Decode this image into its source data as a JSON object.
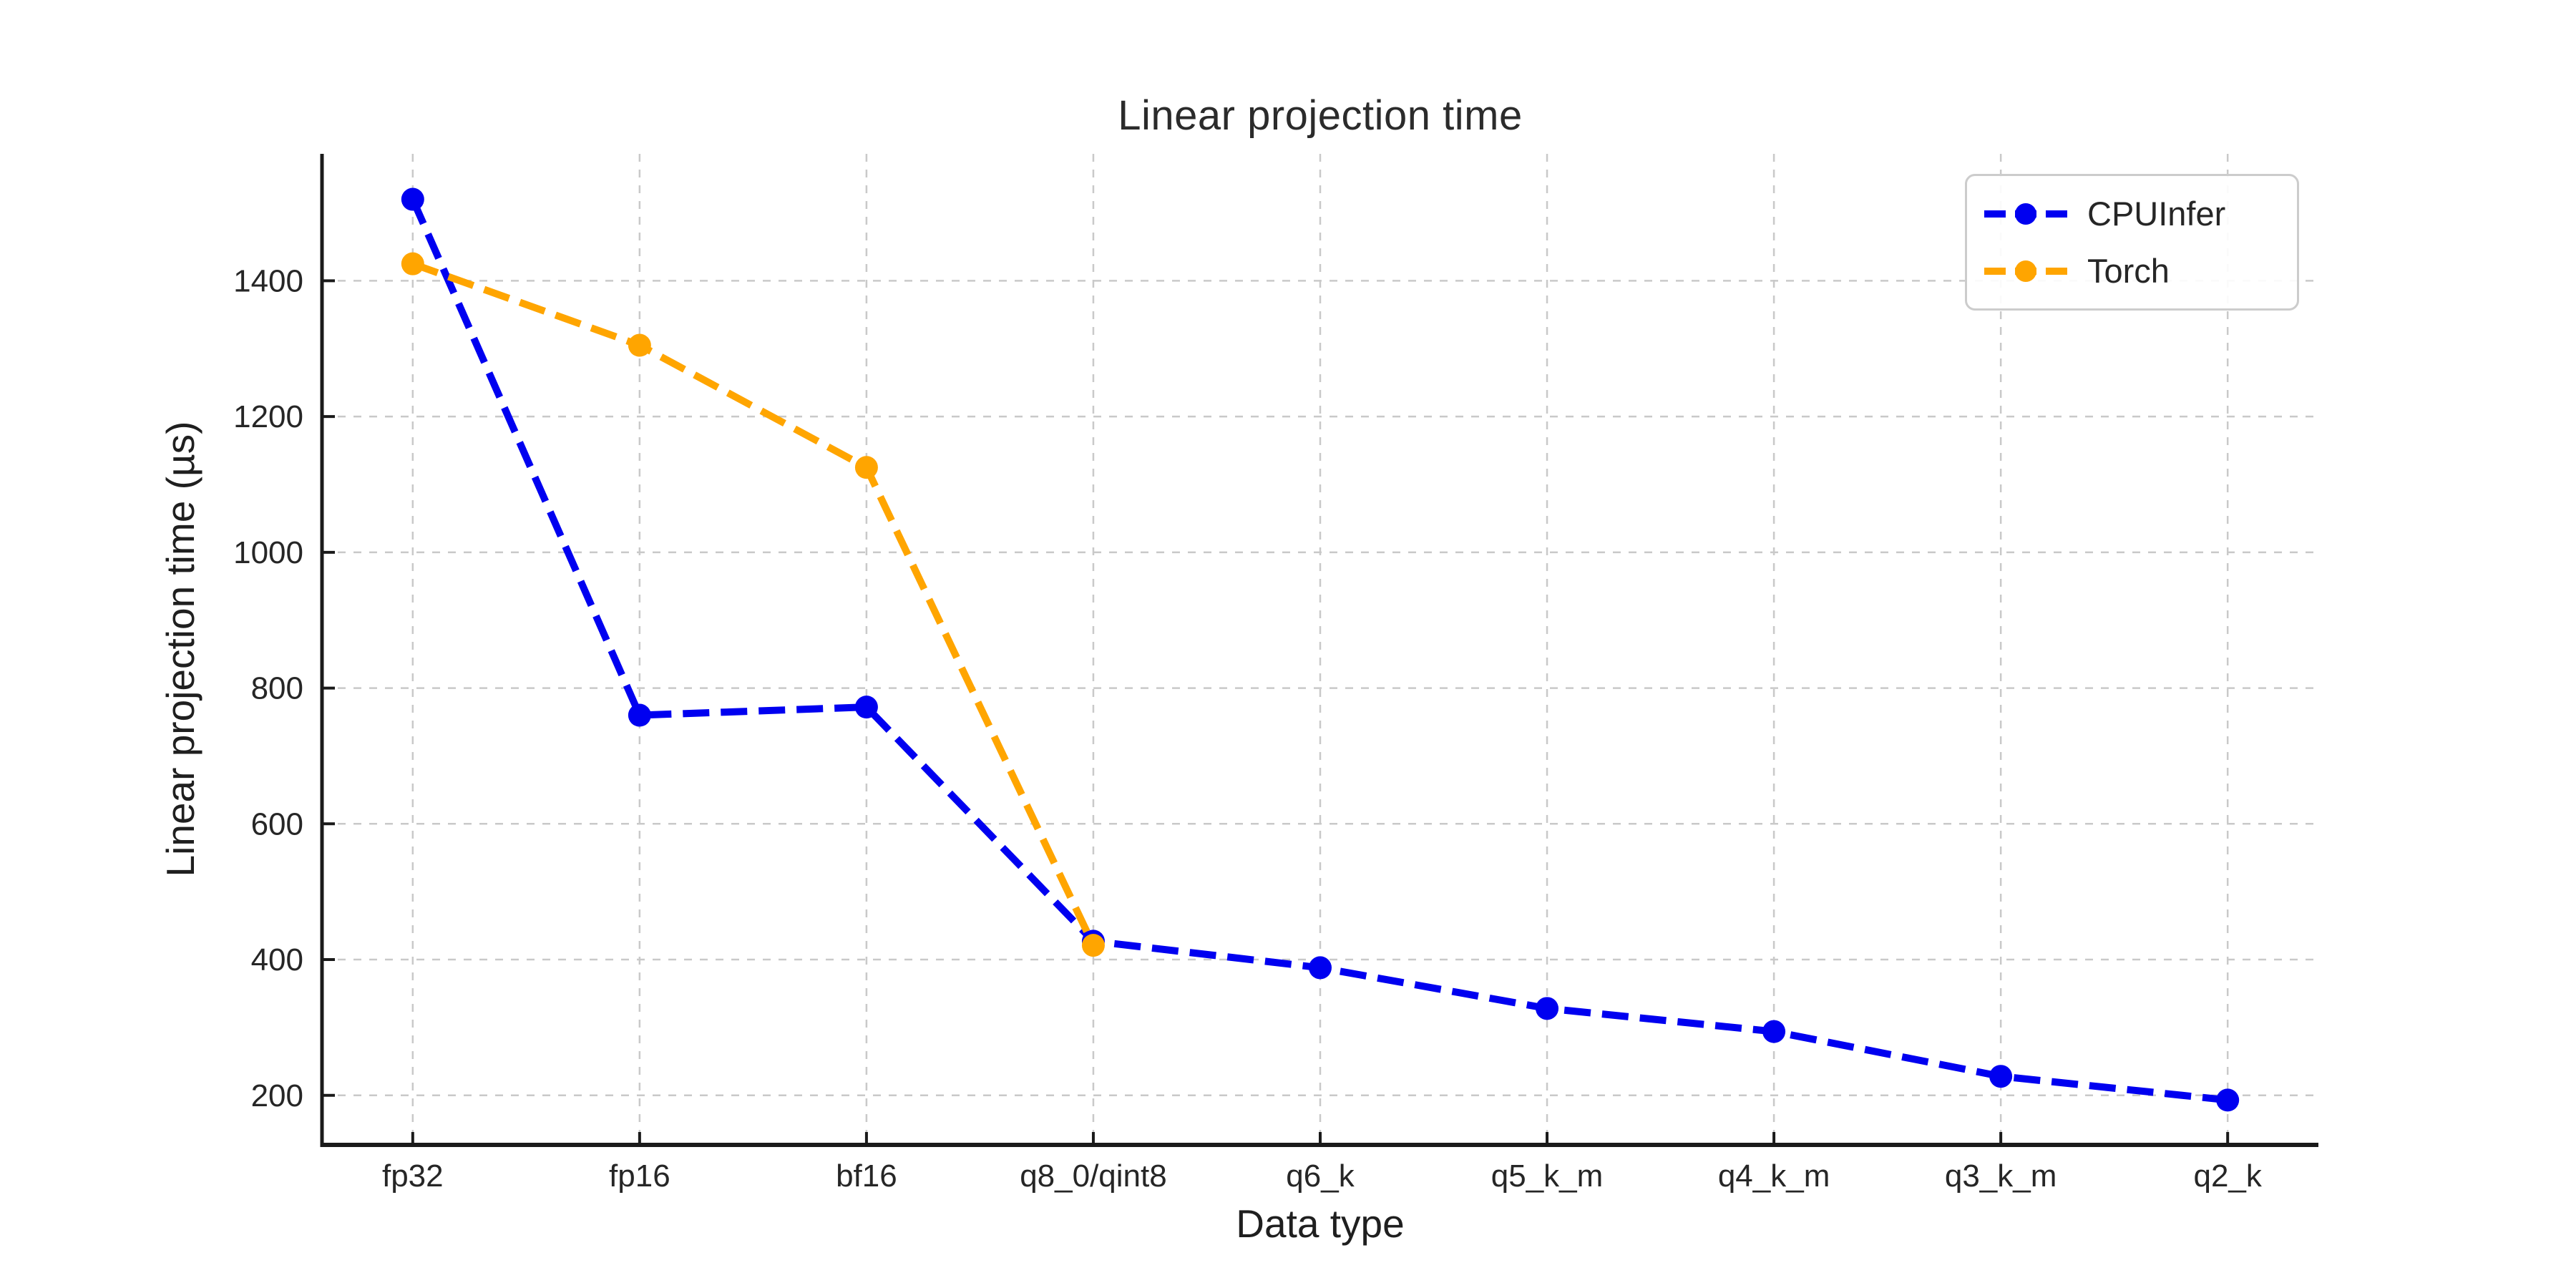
{
  "figure": {
    "background": "#ffffff",
    "text_color": "#262626",
    "grid_color": "#c9c9c9",
    "spine_color": "#1a1a1a"
  },
  "chart_data": {
    "type": "line",
    "title": "Linear projection time",
    "xlabel": "Data type",
    "ylabel": "Linear projection time (µs)",
    "categories": [
      "fp32",
      "fp16",
      "bf16",
      "q8_0/qint8",
      "q6_k",
      "q5_k_m",
      "q4_k_m",
      "q3_k_m",
      "q2_k"
    ],
    "series": [
      {
        "name": "CPUInfer",
        "color": "#0000f0",
        "values": [
          1520,
          760,
          772,
          427,
          388,
          328,
          294,
          228,
          193
        ]
      },
      {
        "name": "Torch",
        "color": "#ffa500",
        "values": [
          1425,
          1305,
          1125,
          421,
          null,
          null,
          null,
          null,
          null
        ]
      }
    ],
    "yticks": [
      200,
      400,
      600,
      800,
      1000,
      1200,
      1400
    ],
    "ylim": [
      127,
      1587
    ],
    "x_margin": 0.4,
    "grid": true,
    "line_style": "dashed",
    "marker": "circle",
    "legend_position": "upper right",
    "legend_items": [
      "CPUInfer",
      "Torch"
    ]
  }
}
